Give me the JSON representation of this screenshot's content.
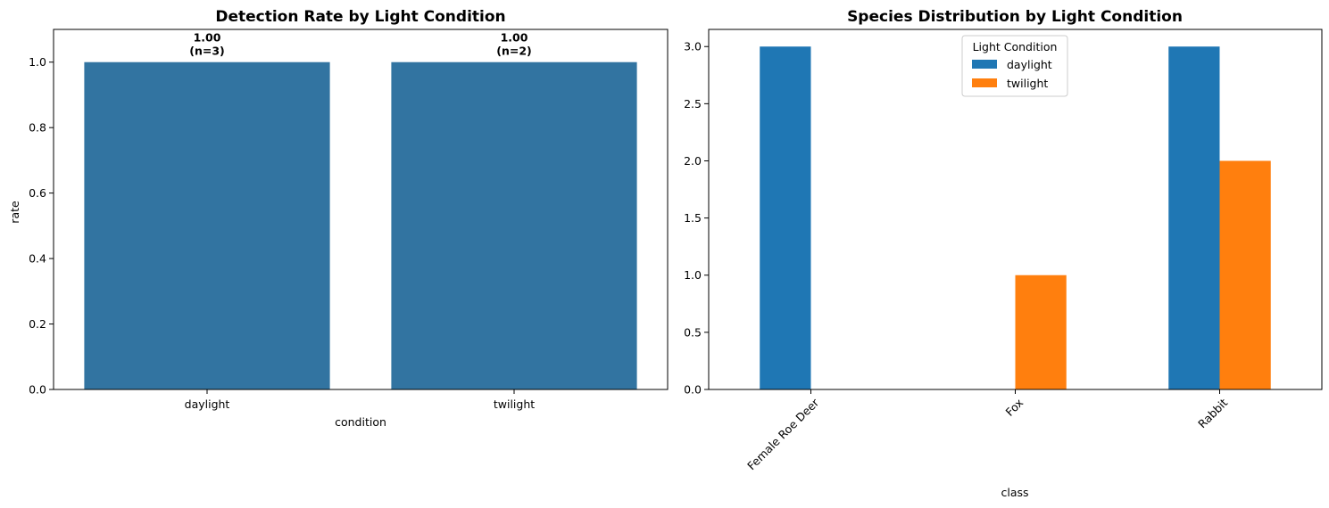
{
  "chart_data": [
    {
      "type": "bar",
      "title": "Detection Rate by Light Condition",
      "xlabel": "condition",
      "ylabel": "rate",
      "categories": [
        "daylight",
        "twilight"
      ],
      "values": [
        1.0,
        1.0
      ],
      "bar_labels": [
        "1.00\n(n=3)",
        "1.00\n(n=2)"
      ],
      "ylim": [
        0,
        1.1
      ],
      "yticks": [
        "0.0",
        "0.2",
        "0.4",
        "0.6",
        "0.8",
        "1.0"
      ],
      "grid": false,
      "color": "#3274a1"
    },
    {
      "type": "bar",
      "title": "Species Distribution by Light Condition",
      "xlabel": "class",
      "ylabel": "",
      "categories": [
        "Female Roe Deer",
        "Fox",
        "Rabbit"
      ],
      "series": [
        {
          "name": "daylight",
          "values": [
            3,
            0,
            3
          ],
          "color": "#1f77b4"
        },
        {
          "name": "twilight",
          "values": [
            0,
            1,
            2
          ],
          "color": "#ff7f0e"
        }
      ],
      "ylim": [
        0,
        3.15
      ],
      "yticks": [
        "0.0",
        "0.5",
        "1.0",
        "1.5",
        "2.0",
        "2.5",
        "3.0"
      ],
      "legend": {
        "title": "Light Condition",
        "position": "upper-center"
      },
      "grid": false
    }
  ]
}
